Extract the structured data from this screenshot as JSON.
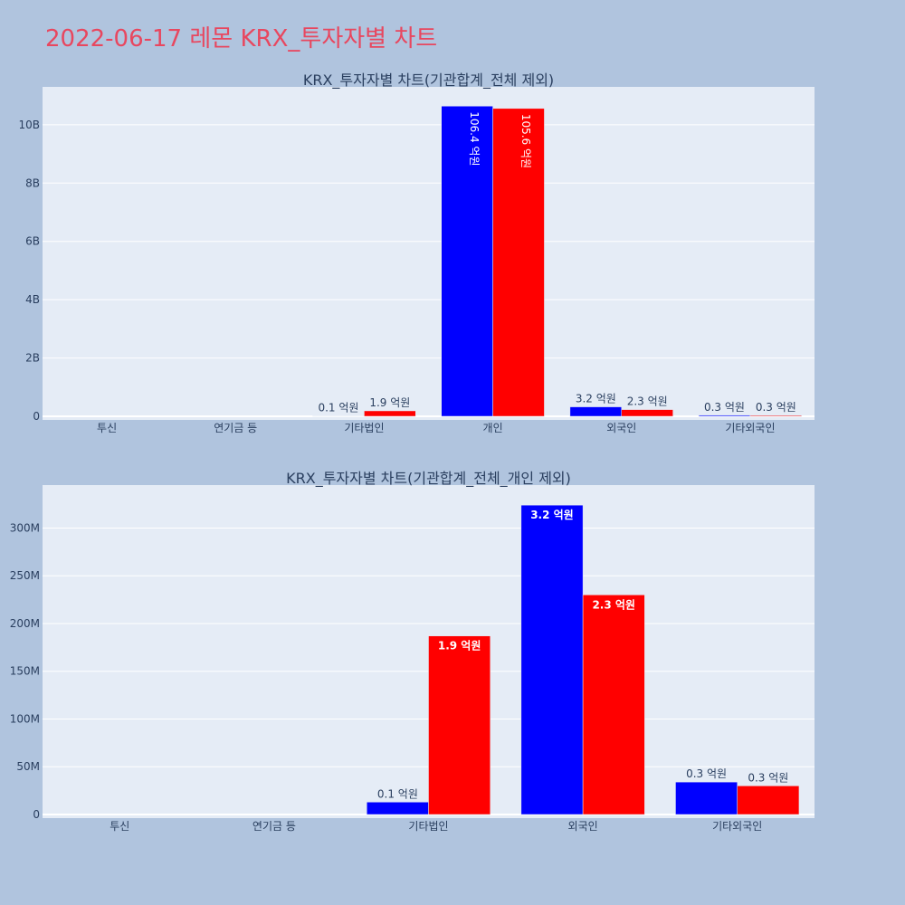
{
  "title": "2022-06-17 레몬 KRX_투자자별 차트",
  "colors": {
    "buy": "#0000ff",
    "sell": "#ff0000",
    "title": "#e8475f",
    "plot_bg": "#e5ecf6",
    "page_bg": "#b0c4de"
  },
  "chart_data": [
    {
      "type": "bar",
      "title": "KRX_투자자별 차트(기관합계_전체 제외)",
      "categories": [
        "투신",
        "연기금 등",
        "기타법인",
        "개인",
        "외국인",
        "기타외국인"
      ],
      "series": [
        {
          "values": [
            0,
            0,
            13000000,
            10640000000,
            324000000,
            34000000
          ],
          "labels": [
            "",
            "",
            "0.1 억원",
            "106.4 억원",
            "3.2 억원",
            "0.3 억원"
          ]
        },
        {
          "values": [
            0,
            0,
            187000000,
            10560000000,
            230000000,
            30000000
          ],
          "labels": [
            "",
            "",
            "1.9 억원",
            "105.6 억원",
            "2.3 억원",
            "0.3 억원"
          ]
        }
      ],
      "ylim": [
        0,
        11300000000
      ],
      "yticks": [
        0,
        2000000000,
        4000000000,
        6000000000,
        8000000000,
        10000000000
      ],
      "ytick_labels": [
        "0",
        "2B",
        "4B",
        "6B",
        "8B",
        "10B"
      ],
      "grid": true,
      "xlabel": "",
      "ylabel": ""
    },
    {
      "type": "bar",
      "title": "KRX_투자자별 차트(기관합계_전체_개인 제외)",
      "categories": [
        "투신",
        "연기금 등",
        "기타법인",
        "외국인",
        "기타외국인"
      ],
      "series": [
        {
          "values": [
            0,
            0,
            13000000,
            324000000,
            34000000
          ],
          "labels": [
            "",
            "",
            "0.1 억원",
            "3.2 억원",
            "0.3 억원"
          ]
        },
        {
          "values": [
            0,
            0,
            187000000,
            230000000,
            30000000
          ],
          "labels": [
            "",
            "",
            "1.9 억원",
            "2.3 억원",
            "0.3 억원"
          ]
        }
      ],
      "ylim": [
        0,
        345000000
      ],
      "yticks": [
        0,
        50000000,
        100000000,
        150000000,
        200000000,
        250000000,
        300000000
      ],
      "ytick_labels": [
        "0",
        "50M",
        "100M",
        "150M",
        "200M",
        "250M",
        "300M"
      ],
      "grid": true,
      "xlabel": "",
      "ylabel": ""
    }
  ]
}
